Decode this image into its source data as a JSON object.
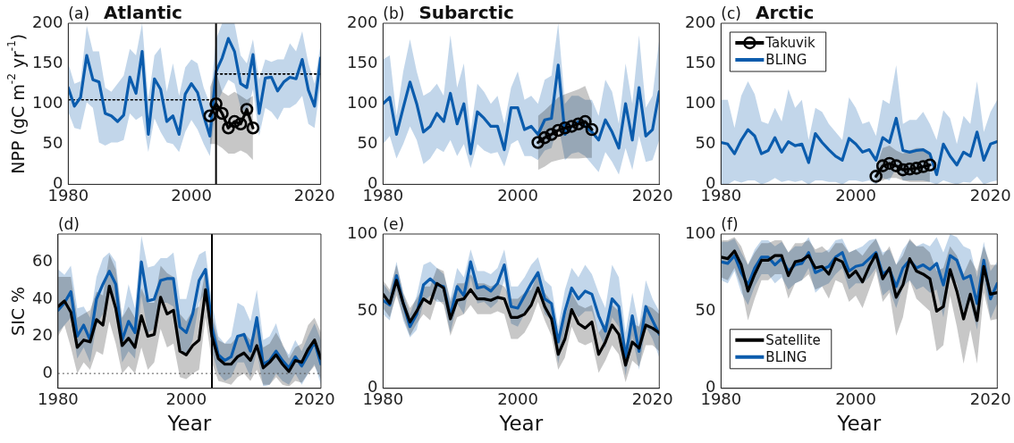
{
  "chart_data": [
    {
      "type": "line",
      "title": "Atlantic",
      "annotations": [
        "(a)"
      ],
      "ylabel": "NPP (gC m$^{-2}$ yr$^{-1}$)",
      "xlim": [
        1980,
        2021
      ],
      "xticks": [
        1980,
        2000,
        2020
      ],
      "ylim": [
        0,
        200
      ],
      "yticks": [
        0,
        50,
        100,
        150,
        200
      ],
      "x": [
        1980,
        1981,
        1982,
        1983,
        1984,
        1985,
        1986,
        1987,
        1988,
        1989,
        1990,
        1991,
        1992,
        1993,
        1994,
        1995,
        1996,
        1997,
        1998,
        1999,
        2000,
        2001,
        2002,
        2003,
        2004,
        2005,
        2006,
        2007,
        2008,
        2009,
        2010,
        2011,
        2012,
        2013,
        2014,
        2015,
        2016,
        2017,
        2018,
        2019,
        2020,
        2021
      ],
      "series": [
        {
          "color": "#000000",
          "marker": "circle",
          "x": [
            2003,
            2004,
            2005,
            2006,
            2007,
            2008,
            2009,
            2010
          ],
          "values": [
            85,
            100,
            88,
            70,
            78,
            75,
            93,
            70
          ],
          "lower": [
            50,
            50,
            45,
            38,
            38,
            42,
            38,
            30
          ],
          "upper": [
            120,
            140,
            115,
            110,
            115,
            110,
            105,
            110
          ]
        },
        {
          "color": "#0b5cad",
          "values": [
            120,
            97,
            108,
            160,
            130,
            127,
            88,
            85,
            78,
            86,
            133,
            113,
            165,
            62,
            131,
            118,
            78,
            85,
            62,
            112,
            125,
            114,
            85,
            60,
            140,
            157,
            181,
            165,
            125,
            120,
            161,
            88,
            132,
            133,
            116,
            127,
            133,
            131,
            155,
            117,
            97,
            157
          ],
          "upper": [
            150,
            125,
            128,
            197,
            165,
            165,
            120,
            115,
            125,
            135,
            168,
            160,
            200,
            105,
            160,
            170,
            115,
            150,
            110,
            145,
            155,
            150,
            120,
            100,
            180,
            200,
            200,
            200,
            160,
            150,
            180,
            130,
            155,
            152,
            155,
            155,
            175,
            165,
            190,
            150,
            125,
            175
          ],
          "lower": [
            90,
            70,
            68,
            102,
            95,
            52,
            48,
            52,
            52,
            55,
            88,
            80,
            85,
            40,
            82,
            65,
            52,
            50,
            40,
            65,
            80,
            68,
            50,
            35,
            98,
            115,
            130,
            125,
            95,
            88,
            118,
            60,
            95,
            90,
            80,
            95,
            95,
            100,
            110,
            75,
            70,
            125
          ]
        },
        {
          "color": "#000000",
          "line_style": "dotted",
          "marker": "none",
          "x": [
            1980,
            2004
          ],
          "values": [
            105,
            105
          ]
        },
        {
          "color": "#000000",
          "line_style": "dotted",
          "marker": "none",
          "x": [
            2004,
            2021
          ],
          "values": [
            137,
            137
          ]
        }
      ],
      "ref_lines": [
        {
          "axis": "x",
          "value": 2004,
          "color": "#000000"
        }
      ]
    },
    {
      "type": "line",
      "title": "Subarctic",
      "annotations": [
        "(b)"
      ],
      "xlim": [
        1980,
        2021
      ],
      "xticks": [
        1980,
        2000,
        2020
      ],
      "ylim": [
        0,
        200
      ],
      "yticks": [
        0,
        50,
        100,
        150,
        200
      ],
      "x": [
        1980,
        1981,
        1982,
        1983,
        1984,
        1985,
        1986,
        1987,
        1988,
        1989,
        1990,
        1991,
        1992,
        1993,
        1994,
        1995,
        1996,
        1997,
        1998,
        1999,
        2000,
        2001,
        2002,
        2003,
        2004,
        2005,
        2006,
        2007,
        2008,
        2009,
        2010,
        2011,
        2012,
        2013,
        2014,
        2015,
        2016,
        2017,
        2018,
        2019,
        2020,
        2021
      ],
      "series": [
        {
          "color": "#000000",
          "marker": "circle",
          "x": [
            2003,
            2004,
            2005,
            2006,
            2007,
            2008,
            2009,
            2010,
            2011
          ],
          "values": [
            52,
            58,
            62,
            67,
            70,
            72,
            75,
            78,
            68
          ],
          "lower": [
            18,
            22,
            28,
            30,
            32,
            32,
            32,
            33,
            33
          ],
          "upper": [
            85,
            92,
            100,
            108,
            112,
            115,
            118,
            122,
            100
          ]
        },
        {
          "color": "#0b5cad",
          "values": [
            100,
            108,
            62,
            95,
            127,
            100,
            65,
            72,
            88,
            78,
            113,
            75,
            100,
            38,
            90,
            82,
            72,
            72,
            43,
            95,
            95,
            68,
            72,
            62,
            80,
            82,
            148,
            62,
            72,
            78,
            72,
            65,
            55,
            80,
            65,
            45,
            100,
            55,
            120,
            60,
            68,
            115
          ],
          "upper": [
            155,
            160,
            85,
            140,
            180,
            140,
            110,
            115,
            125,
            110,
            185,
            120,
            150,
            65,
            125,
            115,
            100,
            110,
            75,
            120,
            140,
            105,
            110,
            100,
            130,
            135,
            200,
            100,
            110,
            110,
            105,
            105,
            85,
            130,
            115,
            75,
            150,
            100,
            185,
            95,
            110,
            180
          ],
          "lower": [
            50,
            60,
            32,
            50,
            72,
            55,
            25,
            32,
            45,
            40,
            55,
            35,
            50,
            20,
            50,
            42,
            38,
            40,
            22,
            50,
            55,
            35,
            35,
            30,
            42,
            45,
            75,
            30,
            38,
            40,
            35,
            25,
            15,
            40,
            28,
            12,
            45,
            18,
            60,
            28,
            30,
            55
          ]
        }
      ]
    },
    {
      "type": "line",
      "title": "Arctic",
      "annotations": [
        "(c)"
      ],
      "legend": "top left",
      "xlim": [
        1980,
        2021
      ],
      "xticks": [
        1980,
        2000,
        2020
      ],
      "ylim": [
        0,
        200
      ],
      "yticks": [
        0,
        50,
        100,
        150,
        200
      ],
      "x": [
        1980,
        1981,
        1982,
        1983,
        1984,
        1985,
        1986,
        1987,
        1988,
        1989,
        1990,
        1991,
        1992,
        1993,
        1994,
        1995,
        1996,
        1997,
        1998,
        1999,
        2000,
        2001,
        2002,
        2003,
        2004,
        2005,
        2006,
        2007,
        2008,
        2009,
        2010,
        2011,
        2012,
        2013,
        2014,
        2015,
        2016,
        2017,
        2018,
        2019,
        2020,
        2021
      ],
      "series": [
        {
          "name": "Takuvik",
          "color": "#000000",
          "marker": "circle",
          "x": [
            2003,
            2004,
            2005,
            2006,
            2007,
            2008,
            2009,
            2010,
            2011
          ],
          "values": [
            10,
            23,
            26,
            23,
            18,
            19,
            20,
            22,
            24
          ],
          "lower": [
            2,
            5,
            8,
            8,
            5,
            3,
            3,
            3,
            3
          ],
          "upper": [
            20,
            45,
            48,
            42,
            38,
            42,
            45,
            45,
            40
          ]
        },
        {
          "name": "BLING",
          "color": "#0b5cad",
          "values": [
            52,
            50,
            38,
            55,
            68,
            60,
            38,
            42,
            58,
            40,
            53,
            48,
            50,
            27,
            63,
            52,
            43,
            35,
            30,
            57,
            50,
            40,
            43,
            30,
            58,
            52,
            82,
            42,
            40,
            42,
            43,
            38,
            12,
            50,
            35,
            24,
            40,
            35,
            65,
            30,
            50,
            53
          ],
          "upper": [
            105,
            105,
            70,
            110,
            128,
            112,
            78,
            75,
            95,
            78,
            118,
            95,
            105,
            55,
            95,
            90,
            75,
            65,
            55,
            108,
            95,
            75,
            78,
            60,
            105,
            100,
            148,
            75,
            80,
            80,
            90,
            75,
            55,
            92,
            82,
            50,
            85,
            75,
            128,
            65,
            90,
            105
          ],
          "lower": [
            0,
            0,
            5,
            2,
            5,
            5,
            0,
            3,
            8,
            3,
            5,
            3,
            5,
            0,
            5,
            5,
            3,
            3,
            0,
            5,
            5,
            3,
            5,
            0,
            8,
            5,
            20,
            5,
            5,
            5,
            5,
            3,
            0,
            5,
            2,
            0,
            3,
            2,
            10,
            0,
            3,
            5
          ]
        }
      ]
    },
    {
      "type": "line",
      "annotations": [
        "(d)"
      ],
      "xlabel": "Year",
      "ylabel": "SIC %",
      "xlim": [
        1980,
        2021
      ],
      "xticks": [
        1980,
        2000,
        2020
      ],
      "ylim": [
        -8,
        75
      ],
      "yticks": [
        0,
        20,
        40,
        60
      ],
      "x": [
        1980,
        1981,
        1982,
        1983,
        1984,
        1985,
        1986,
        1987,
        1988,
        1989,
        1990,
        1991,
        1992,
        1993,
        1994,
        1995,
        1996,
        1997,
        1998,
        1999,
        2000,
        2001,
        2002,
        2003,
        2004,
        2005,
        2006,
        2007,
        2008,
        2009,
        2010,
        2011,
        2012,
        2013,
        2014,
        2015,
        2016,
        2017,
        2018,
        2019,
        2020,
        2021
      ],
      "series": [
        {
          "color": "#000000",
          "values": [
            36,
            39,
            33,
            14,
            18,
            17,
            29,
            26,
            47,
            35,
            15,
            19,
            14,
            31,
            20,
            21,
            41,
            32,
            34,
            12,
            10,
            15,
            18,
            45,
            20,
            8,
            5,
            5,
            9,
            11,
            7,
            15,
            3,
            6,
            10,
            5,
            1,
            7,
            6,
            13,
            18,
            8
          ],
          "upper": [
            52,
            52,
            52,
            30,
            32,
            34,
            44,
            42,
            64,
            56,
            30,
            36,
            30,
            46,
            38,
            38,
            58,
            54,
            52,
            32,
            28,
            34,
            36,
            56,
            32,
            18,
            16,
            16,
            20,
            22,
            18,
            26,
            14,
            16,
            22,
            16,
            8,
            14,
            16,
            26,
            30,
            22
          ],
          "lower": [
            20,
            26,
            14,
            0,
            6,
            2,
            12,
            10,
            28,
            16,
            0,
            4,
            0,
            14,
            2,
            6,
            24,
            14,
            16,
            -2,
            -3,
            0,
            2,
            30,
            6,
            -4,
            -5,
            -6,
            -2,
            0,
            -4,
            2,
            -6,
            -6,
            -2,
            -6,
            -7,
            -4,
            -5,
            0,
            4,
            -3
          ]
        },
        {
          "color": "#0b5cad",
          "values": [
            34,
            38,
            44,
            20,
            26,
            18,
            40,
            48,
            55,
            48,
            18,
            28,
            22,
            60,
            39,
            40,
            50,
            51,
            51,
            25,
            22,
            32,
            50,
            56,
            25,
            10,
            7,
            9,
            20,
            21,
            12,
            30,
            5,
            7,
            12,
            7,
            3,
            9,
            4,
            10,
            17,
            5
          ],
          "upper": [
            56,
            53,
            58,
            35,
            36,
            30,
            52,
            62,
            65,
            60,
            30,
            48,
            35,
            74,
            57,
            58,
            62,
            62,
            65,
            40,
            40,
            55,
            64,
            66,
            38,
            20,
            16,
            20,
            38,
            36,
            28,
            45,
            18,
            20,
            27,
            15,
            10,
            18,
            12,
            20,
            27,
            18
          ],
          "lower": [
            22,
            26,
            30,
            8,
            14,
            6,
            26,
            32,
            45,
            34,
            6,
            12,
            8,
            42,
            22,
            24,
            38,
            38,
            36,
            12,
            10,
            18,
            38,
            44,
            12,
            0,
            -4,
            -2,
            6,
            6,
            -2,
            12,
            -7,
            -6,
            0,
            -4,
            -6,
            0,
            -6,
            0,
            5,
            -6
          ]
        }
      ],
      "ref_lines": [
        {
          "axis": "x",
          "value": 2004,
          "color": "#000000"
        },
        {
          "axis": "y",
          "value": 0,
          "color": "#555555",
          "line_style": "dotted"
        }
      ]
    },
    {
      "type": "line",
      "annotations": [
        "(e)"
      ],
      "xlabel": "Year",
      "xlim": [
        1980,
        2021
      ],
      "xticks": [
        1980,
        2000,
        2020
      ],
      "ylim": [
        0,
        100
      ],
      "yticks": [
        0,
        50,
        100
      ],
      "x": [
        1980,
        1981,
        1982,
        1983,
        1984,
        1985,
        1986,
        1987,
        1988,
        1989,
        1990,
        1991,
        1992,
        1993,
        1994,
        1995,
        1996,
        1997,
        1998,
        1999,
        2000,
        2001,
        2002,
        2003,
        2004,
        2005,
        2006,
        2007,
        2008,
        2009,
        2010,
        2011,
        2012,
        2013,
        2014,
        2015,
        2016,
        2017,
        2018,
        2019,
        2020,
        2021
      ],
      "series": [
        {
          "color": "#000000",
          "values": [
            61,
            55,
            70,
            55,
            43,
            50,
            58,
            55,
            68,
            65,
            45,
            57,
            58,
            64,
            58,
            58,
            57,
            59,
            58,
            46,
            46,
            48,
            54,
            65,
            53,
            45,
            22,
            32,
            51,
            42,
            39,
            43,
            22,
            30,
            41,
            35,
            15,
            30,
            26,
            41,
            39,
            36
          ],
          "upper": [
            70,
            64,
            80,
            62,
            52,
            58,
            66,
            66,
            78,
            76,
            56,
            68,
            68,
            74,
            68,
            68,
            66,
            68,
            66,
            58,
            58,
            62,
            64,
            75,
            62,
            56,
            34,
            46,
            62,
            54,
            52,
            54,
            36,
            42,
            54,
            50,
            28,
            42,
            40,
            54,
            52,
            48
          ],
          "lower": [
            52,
            46,
            60,
            46,
            34,
            42,
            48,
            44,
            58,
            54,
            34,
            46,
            48,
            54,
            48,
            48,
            48,
            50,
            48,
            32,
            32,
            36,
            44,
            56,
            44,
            34,
            12,
            20,
            40,
            30,
            28,
            30,
            10,
            18,
            28,
            22,
            4,
            18,
            14,
            28,
            28,
            24
          ]
        },
        {
          "color": "#0b5cad",
          "values": [
            57,
            54,
            73,
            55,
            40,
            48,
            67,
            71,
            67,
            66,
            47,
            66,
            60,
            82,
            65,
            66,
            63,
            68,
            80,
            53,
            52,
            60,
            68,
            75,
            58,
            55,
            30,
            50,
            65,
            58,
            63,
            61,
            47,
            37,
            58,
            53,
            20,
            47,
            24,
            53,
            44,
            35
          ],
          "upper": [
            68,
            62,
            82,
            62,
            48,
            60,
            80,
            82,
            78,
            74,
            58,
            78,
            72,
            90,
            76,
            76,
            74,
            78,
            90,
            66,
            66,
            72,
            80,
            85,
            70,
            66,
            40,
            64,
            78,
            72,
            80,
            74,
            62,
            52,
            80,
            72,
            36,
            62,
            40,
            70,
            58,
            50
          ],
          "lower": [
            48,
            44,
            64,
            44,
            33,
            38,
            56,
            60,
            56,
            56,
            36,
            55,
            48,
            72,
            55,
            56,
            52,
            56,
            70,
            42,
            40,
            48,
            56,
            65,
            48,
            44,
            16,
            38,
            52,
            46,
            50,
            50,
            36,
            26,
            46,
            40,
            8,
            34,
            12,
            40,
            32,
            20
          ]
        }
      ]
    },
    {
      "type": "line",
      "annotations": [
        "(f)"
      ],
      "xlabel": "Year",
      "legend": "bottom left",
      "xlim": [
        1980,
        2021
      ],
      "xticks": [
        1980,
        2000,
        2020
      ],
      "ylim": [
        0,
        100
      ],
      "yticks": [
        0,
        50,
        100
      ],
      "x": [
        1980,
        1981,
        1982,
        1983,
        1984,
        1985,
        1986,
        1987,
        1988,
        1989,
        1990,
        1991,
        1992,
        1993,
        1994,
        1995,
        1996,
        1997,
        1998,
        1999,
        2000,
        2001,
        2002,
        2003,
        2004,
        2005,
        2006,
        2007,
        2008,
        2009,
        2010,
        2011,
        2012,
        2013,
        2014,
        2015,
        2016,
        2017,
        2018,
        2019,
        2020,
        2021
      ],
      "series": [
        {
          "name": "Satellite",
          "color": "#000000",
          "values": [
            85,
            84,
            89,
            80,
            63,
            74,
            83,
            83,
            86,
            86,
            73,
            82,
            83,
            86,
            78,
            79,
            74,
            84,
            82,
            72,
            76,
            69,
            79,
            87,
            71,
            78,
            59,
            67,
            84,
            76,
            74,
            71,
            50,
            53,
            77,
            63,
            45,
            61,
            44,
            79,
            61,
            62
          ],
          "upper": [
            96,
            96,
            98,
            92,
            80,
            88,
            94,
            94,
            96,
            96,
            88,
            94,
            94,
            96,
            90,
            92,
            88,
            94,
            94,
            88,
            90,
            86,
            92,
            97,
            86,
            92,
            80,
            86,
            97,
            92,
            92,
            88,
            76,
            78,
            92,
            86,
            74,
            84,
            76,
            92,
            80,
            80
          ],
          "lower": [
            72,
            70,
            78,
            66,
            44,
            58,
            70,
            70,
            74,
            74,
            58,
            68,
            70,
            74,
            64,
            66,
            58,
            70,
            68,
            56,
            60,
            52,
            64,
            76,
            56,
            62,
            34,
            46,
            70,
            58,
            54,
            50,
            24,
            28,
            60,
            40,
            16,
            38,
            16,
            62,
            44,
            45
          ]
        },
        {
          "name": "BLING",
          "color": "#0b5cad",
          "values": [
            82,
            81,
            86,
            75,
            67,
            78,
            85,
            85,
            80,
            84,
            76,
            80,
            81,
            88,
            75,
            77,
            79,
            85,
            88,
            76,
            79,
            80,
            84,
            88,
            74,
            77,
            66,
            78,
            83,
            78,
            80,
            77,
            81,
            67,
            86,
            83,
            71,
            73,
            55,
            83,
            58,
            68
          ],
          "upper": [
            95,
            95,
            97,
            88,
            80,
            90,
            96,
            96,
            92,
            95,
            88,
            92,
            92,
            98,
            88,
            88,
            90,
            96,
            97,
            88,
            90,
            92,
            96,
            97,
            88,
            90,
            80,
            90,
            96,
            92,
            94,
            92,
            98,
            88,
            100,
            98,
            92,
            90,
            72,
            95,
            76,
            82
          ],
          "lower": [
            70,
            68,
            76,
            62,
            54,
            66,
            74,
            74,
            68,
            72,
            64,
            68,
            70,
            78,
            62,
            66,
            68,
            74,
            78,
            64,
            68,
            68,
            72,
            78,
            60,
            64,
            52,
            66,
            70,
            64,
            66,
            62,
            64,
            46,
            72,
            68,
            50,
            56,
            38,
            70,
            45,
            55
          ]
        }
      ]
    }
  ]
}
